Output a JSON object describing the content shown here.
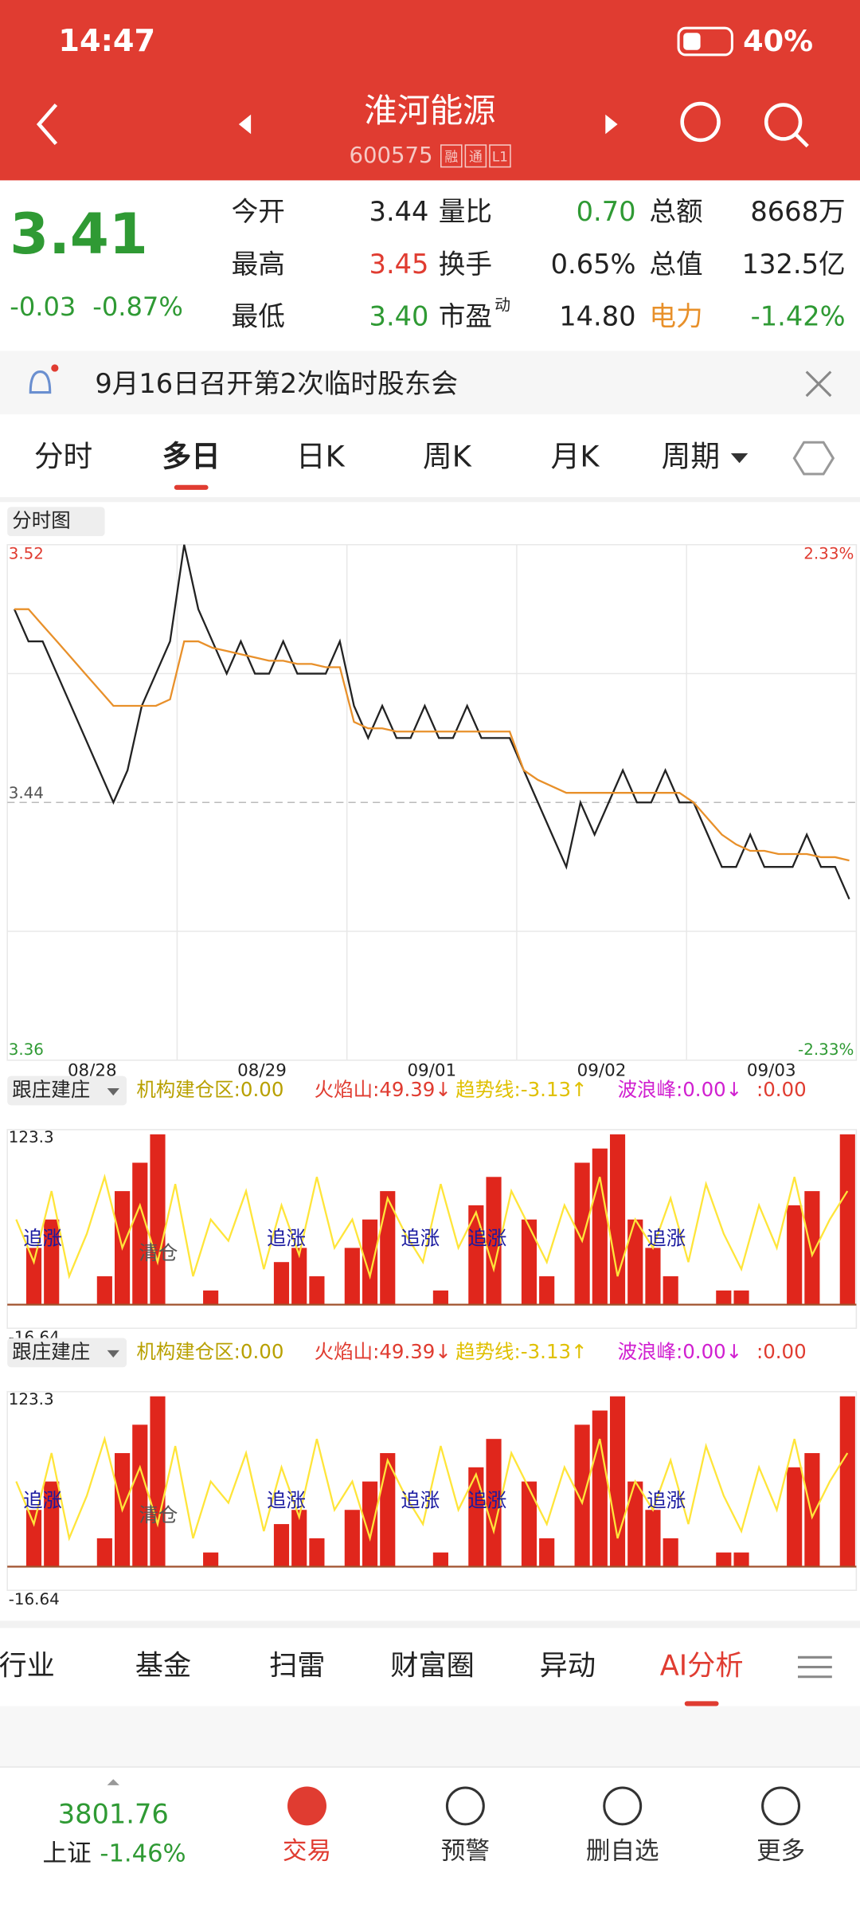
{
  "status_bar": {
    "time": "14:47",
    "battery": "40%"
  },
  "header": {
    "title": "淮河能源",
    "code": "600575",
    "tags": [
      "融",
      "通",
      "L1"
    ]
  },
  "quote": {
    "price": "3.41",
    "change": "-0.03",
    "change_pct": "-0.87%",
    "fields": [
      {
        "label": "今开",
        "value": "3.44"
      },
      {
        "label": "量比",
        "value": "0.70"
      },
      {
        "label": "总额",
        "value": "8668万"
      },
      {
        "label": "最高",
        "value": "3.45"
      },
      {
        "label": "换手",
        "value": "0.65%"
      },
      {
        "label": "总值",
        "value": "132.5亿"
      },
      {
        "label": "最低",
        "value": "3.40"
      },
      {
        "label": "市盈",
        "label_sup": "动",
        "value": "14.80"
      },
      {
        "label": "电力",
        "value": "-1.42%"
      }
    ]
  },
  "notice": "9月16日召开第2次临时股东会",
  "tabs": [
    "分时",
    "多日",
    "日K",
    "周K",
    "月K",
    "周期"
  ],
  "price_chart": {
    "selector": "分时图",
    "ylim": [
      3.36,
      3.52
    ],
    "yticks": [
      3.36,
      3.44,
      3.52
    ],
    "pct_top": "2.33%",
    "pct_bottom": "-2.33%",
    "dates": [
      "08/28",
      "08/29",
      "09/01",
      "09/02",
      "09/03"
    ],
    "price": [
      3.5,
      3.49,
      3.49,
      3.48,
      3.47,
      3.46,
      3.45,
      3.44,
      3.45,
      3.47,
      3.48,
      3.49,
      3.52,
      3.5,
      3.49,
      3.48,
      3.49,
      3.48,
      3.48,
      3.49,
      3.48,
      3.48,
      3.48,
      3.49,
      3.47,
      3.46,
      3.47,
      3.46,
      3.46,
      3.47,
      3.46,
      3.46,
      3.47,
      3.46,
      3.46,
      3.46,
      3.45,
      3.44,
      3.43,
      3.42,
      3.44,
      3.43,
      3.44,
      3.45,
      3.44,
      3.44,
      3.45,
      3.44,
      3.44,
      3.43,
      3.42,
      3.42,
      3.43,
      3.42,
      3.42,
      3.42,
      3.43,
      3.42,
      3.42,
      3.41
    ],
    "avg": [
      3.5,
      3.5,
      3.495,
      3.49,
      3.485,
      3.48,
      3.475,
      3.47,
      3.47,
      3.47,
      3.47,
      3.472,
      3.49,
      3.49,
      3.488,
      3.487,
      3.486,
      3.485,
      3.484,
      3.484,
      3.483,
      3.483,
      3.482,
      3.482,
      3.465,
      3.463,
      3.463,
      3.462,
      3.462,
      3.462,
      3.462,
      3.462,
      3.462,
      3.462,
      3.462,
      3.462,
      3.45,
      3.447,
      3.445,
      3.443,
      3.443,
      3.443,
      3.443,
      3.443,
      3.443,
      3.443,
      3.443,
      3.443,
      3.44,
      3.435,
      3.43,
      3.427,
      3.425,
      3.425,
      3.424,
      3.424,
      3.424,
      3.423,
      3.423,
      3.422
    ]
  },
  "indicator": {
    "selector": "跟庄建庄",
    "legend": [
      "机构建仓区:0.00",
      "火焰山:49.39↓",
      "趋势线:-3.13↑",
      "波浪峰:0.00↓",
      ":0.00"
    ],
    "ylim": [
      -16.64,
      123.3
    ],
    "yticks": [
      -16.64,
      123.3
    ],
    "signal_labels": [
      "追涨",
      "追涨",
      "追涨",
      "追涨",
      "追涨",
      "清仓"
    ],
    "bars": [
      0,
      40,
      60,
      0,
      0,
      20,
      80,
      100,
      120,
      0,
      0,
      10,
      0,
      0,
      0,
      30,
      40,
      20,
      0,
      40,
      60,
      80,
      0,
      0,
      10,
      0,
      70,
      90,
      0,
      60,
      20,
      0,
      100,
      110,
      120,
      60,
      40,
      20,
      0,
      0,
      10,
      10,
      0,
      0,
      70,
      80,
      0,
      120
    ],
    "line": [
      60,
      30,
      80,
      20,
      50,
      90,
      40,
      70,
      30,
      85,
      20,
      60,
      45,
      80,
      25,
      70,
      35,
      90,
      40,
      60,
      20,
      75,
      50,
      30,
      85,
      40,
      65,
      25,
      80,
      55,
      30,
      70,
      45,
      90,
      20,
      60,
      40,
      75,
      30,
      85,
      50,
      25,
      70,
      40,
      90,
      35,
      60,
      80
    ]
  },
  "bottom_tabs": [
    "行业",
    "基金",
    "扫雷",
    "财富圈",
    "异动",
    "AI分析"
  ],
  "bottom_nav": {
    "index_value": "3801.76",
    "index_name": "上证",
    "index_change": "-1.46%",
    "items": [
      "交易",
      "预警",
      "删自选",
      "更多"
    ]
  }
}
